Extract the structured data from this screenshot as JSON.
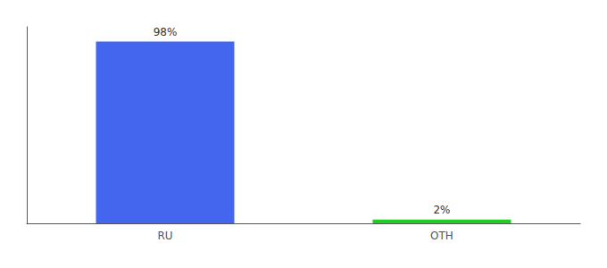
{
  "chart_data": {
    "type": "bar",
    "categories": [
      "RU",
      "OTH"
    ],
    "values": [
      98,
      2
    ],
    "value_labels": [
      "98%",
      "2%"
    ],
    "colors": [
      "#4466ee",
      "#22cc22"
    ],
    "data_labels": true,
    "ylim": [
      0,
      106
    ],
    "grid": false,
    "tick_labels": "x"
  }
}
